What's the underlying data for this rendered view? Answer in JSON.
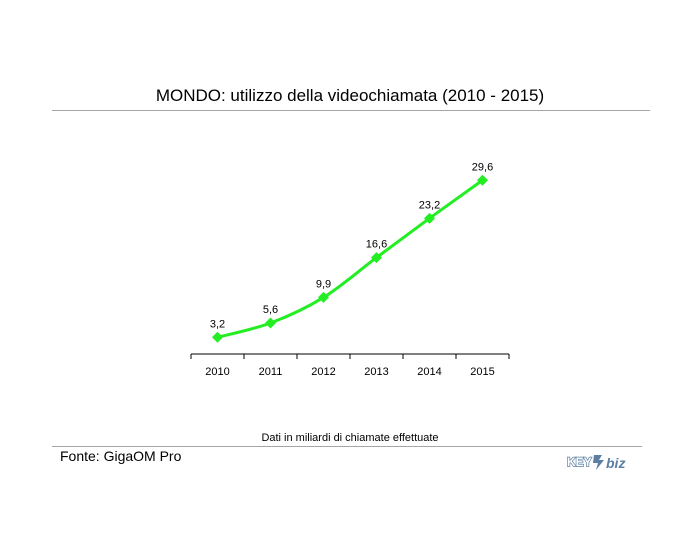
{
  "chart_data": {
    "type": "line",
    "title": "MONDO: utilizzo della videochiamata (2010 - 2015)",
    "categories": [
      "2010",
      "2011",
      "2012",
      "2013",
      "2014",
      "2015"
    ],
    "values": [
      3.2,
      5.6,
      9.9,
      16.6,
      23.2,
      29.6
    ],
    "data_labels": [
      "3,2",
      "5,6",
      "9,9",
      "16,6",
      "23,2",
      "29,6"
    ],
    "xlabel": "",
    "ylabel": "",
    "ylim": [
      0,
      30
    ],
    "grid": false,
    "legend": "none",
    "series_color": "#22ee22",
    "marker": "diamond"
  },
  "note": "Dati in miliardi di chiamate effettuate",
  "source": "Fonte: GigaOM Pro",
  "logo": {
    "text": "KEY4biz",
    "color": "#5b7fa3"
  },
  "rule_color": "#a6a6a6"
}
